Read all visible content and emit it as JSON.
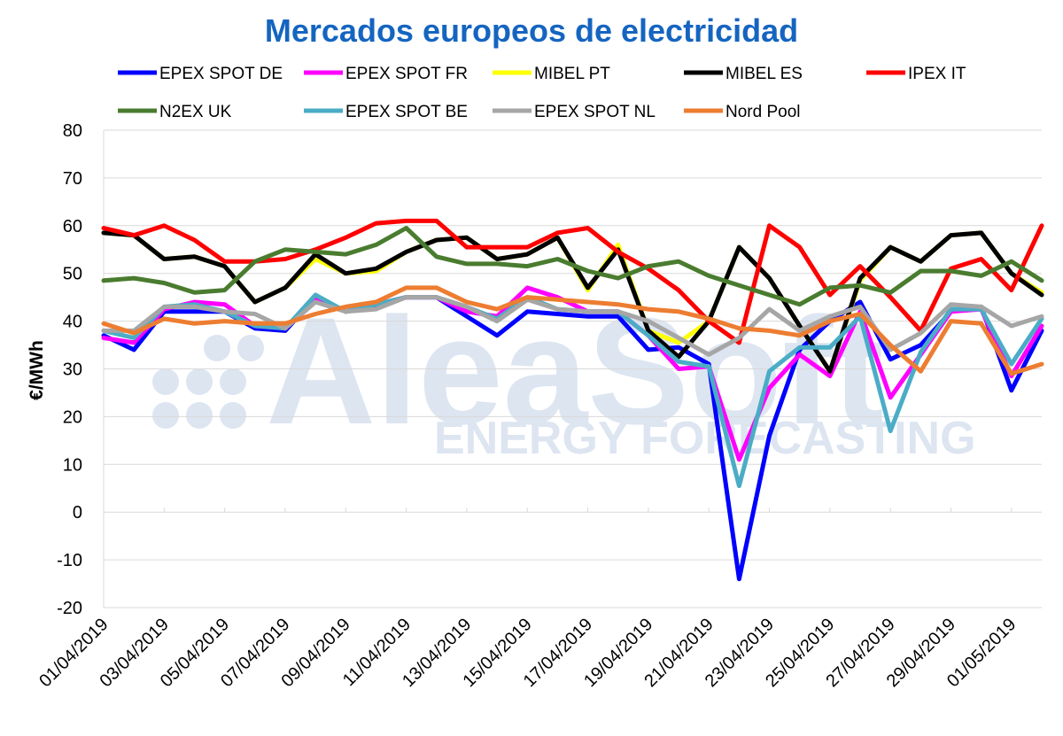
{
  "chart_data": {
    "type": "line",
    "title": "Mercados europeos de electricidad",
    "ylabel": "€/MWh",
    "xlabel": "",
    "ylim": [
      -20,
      80
    ],
    "yticks": [
      -20,
      -10,
      0,
      10,
      20,
      30,
      40,
      50,
      60,
      70,
      80
    ],
    "grid": "horizontal",
    "legend_position": "top",
    "watermark": {
      "line1": "AleaSoft",
      "line2": "ENERGY FORECASTING"
    },
    "x": [
      "01/04/2019",
      "02/04/2019",
      "03/04/2019",
      "04/04/2019",
      "05/04/2019",
      "06/04/2019",
      "07/04/2019",
      "08/04/2019",
      "09/04/2019",
      "10/04/2019",
      "11/04/2019",
      "12/04/2019",
      "13/04/2019",
      "14/04/2019",
      "15/04/2019",
      "16/04/2019",
      "17/04/2019",
      "18/04/2019",
      "19/04/2019",
      "20/04/2019",
      "21/04/2019",
      "22/04/2019",
      "23/04/2019",
      "24/04/2019",
      "25/04/2019",
      "26/04/2019",
      "27/04/2019",
      "28/04/2019",
      "29/04/2019",
      "30/04/2019",
      "01/05/2019",
      "02/05/2019"
    ],
    "x_tick_labels": [
      "01/04/2019",
      "03/04/2019",
      "05/04/2019",
      "07/04/2019",
      "09/04/2019",
      "11/04/2019",
      "13/04/2019",
      "15/04/2019",
      "17/04/2019",
      "19/04/2019",
      "21/04/2019",
      "23/04/2019",
      "25/04/2019",
      "27/04/2019",
      "29/04/2019",
      "01/05/2019"
    ],
    "series": [
      {
        "name": "EPEX SPOT DE",
        "color": "#0000ff",
        "values": [
          37,
          34,
          42,
          42,
          42,
          38.5,
          38,
          45,
          42,
          43,
          45,
          45,
          41,
          37,
          42,
          41.5,
          41,
          41,
          34,
          34.5,
          31,
          -14,
          16,
          34,
          40,
          44,
          32,
          35,
          42,
          43,
          25.5,
          38
        ]
      },
      {
        "name": "EPEX SPOT FR",
        "color": "#ff00ff",
        "values": [
          36.5,
          35.5,
          42.5,
          44,
          43.5,
          39,
          38.5,
          44.5,
          42,
          43.5,
          45,
          45,
          42,
          41,
          47,
          45,
          42,
          42,
          37,
          30,
          30.5,
          11,
          26,
          33,
          28.5,
          42,
          24,
          33,
          42,
          42.5,
          28.5,
          39
        ]
      },
      {
        "name": "MIBEL PT",
        "color": "#ffff00",
        "values": [
          58.5,
          58,
          53,
          53.5,
          51.5,
          44,
          47,
          53,
          50,
          50.5,
          54.5,
          57,
          57.5,
          53,
          54,
          57.5,
          46.5,
          56,
          38,
          35.5,
          40,
          55.5,
          49,
          39,
          29.5,
          48.5,
          55.5,
          52.5,
          58,
          58.5,
          50,
          46
        ]
      },
      {
        "name": "MIBEL ES",
        "color": "#000000",
        "values": [
          58.5,
          58,
          53,
          53.5,
          51.5,
          44,
          47,
          54,
          50,
          51,
          54.5,
          57,
          57.5,
          53,
          54,
          57.5,
          47,
          55,
          38,
          32.5,
          40,
          55.5,
          49,
          39,
          29.5,
          49,
          55.5,
          52.5,
          58,
          58.5,
          50,
          45.5
        ]
      },
      {
        "name": "IPEX IT",
        "color": "#ff0000",
        "values": [
          59.5,
          58,
          60,
          57,
          52.5,
          52.5,
          53,
          55,
          57.5,
          60.5,
          61,
          61,
          55.5,
          55.5,
          55.5,
          58.5,
          59.5,
          54.5,
          51,
          46.5,
          40,
          35.5,
          60,
          55.5,
          45.5,
          51.5,
          45,
          38,
          51,
          53,
          46.5,
          60
        ]
      },
      {
        "name": "N2EX UK",
        "color": "#4a7c2f",
        "values": [
          48.5,
          49,
          48,
          46,
          46.5,
          52.5,
          55,
          54.5,
          54,
          56,
          59.5,
          53.5,
          52,
          52,
          51.5,
          53,
          50.5,
          49,
          51.5,
          52.5,
          49.5,
          47.5,
          45.5,
          43.5,
          47,
          47.5,
          46,
          50.5,
          50.5,
          49.5,
          52.5,
          48.5
        ]
      },
      {
        "name": "EPEX SPOT BE",
        "color": "#4bacc6",
        "values": [
          38,
          36.5,
          43,
          43.5,
          42,
          39,
          38.5,
          45.5,
          42,
          43.5,
          45,
          45,
          43,
          40.5,
          45,
          42.5,
          42,
          42,
          37,
          31.5,
          30.5,
          5.5,
          29.5,
          34.5,
          34.5,
          41,
          17,
          33.5,
          42.5,
          42.5,
          31,
          40.5
        ]
      },
      {
        "name": "EPEX SPOT NL",
        "color": "#a6a6a6",
        "values": [
          38,
          38,
          43,
          43,
          42,
          41.5,
          38.5,
          44,
          42,
          42.5,
          45,
          45,
          43,
          40,
          44.5,
          42.5,
          42,
          42,
          40,
          36.5,
          33,
          36.5,
          42.5,
          38,
          41,
          43,
          34,
          37.5,
          43.5,
          43,
          39,
          41
        ]
      },
      {
        "name": "Nord Pool",
        "color": "#ed7d31",
        "values": [
          39.5,
          37.5,
          40.5,
          39.5,
          40,
          39.5,
          39.5,
          41.5,
          43,
          44,
          47,
          47,
          44,
          42.5,
          45,
          44.5,
          44,
          43.5,
          42.5,
          42,
          40.5,
          38.5,
          38,
          37,
          40,
          41.5,
          35,
          29.5,
          40,
          39.5,
          29,
          31
        ]
      }
    ]
  }
}
